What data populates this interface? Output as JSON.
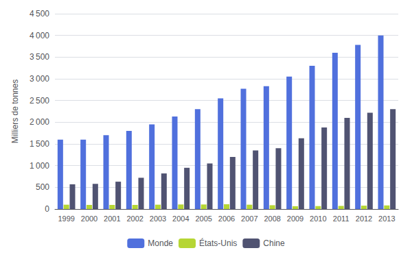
{
  "chart_data": {
    "type": "bar",
    "categories": [
      "1999",
      "2000",
      "2001",
      "2002",
      "2003",
      "2004",
      "2005",
      "2006",
      "2007",
      "2008",
      "2009",
      "2010",
      "2011",
      "2012",
      "2013"
    ],
    "series": [
      {
        "name": "Monde",
        "values": [
          1600,
          1600,
          1700,
          1800,
          1950,
          2130,
          2300,
          2550,
          2770,
          2830,
          3050,
          3300,
          3600,
          3780,
          4000
        ]
      },
      {
        "name": "États-Unis",
        "values": [
          100,
          95,
          95,
          95,
          100,
          105,
          105,
          110,
          100,
          88,
          65,
          68,
          72,
          78,
          83
        ]
      },
      {
        "name": "Chine",
        "values": [
          570,
          580,
          630,
          720,
          820,
          950,
          1050,
          1200,
          1350,
          1400,
          1630,
          1880,
          2100,
          2220,
          2300
        ]
      }
    ],
    "ylabel": "Milliers de tonnes",
    "ylim": [
      0,
      4500
    ],
    "yticks": [
      0,
      500,
      {
        "value": 1000,
        "label": "1 000"
      },
      {
        "value": 1500,
        "label": "1 500"
      },
      {
        "value": 2000,
        "label": "2 000"
      },
      {
        "value": 2500,
        "label": "2 500"
      },
      {
        "value": 3000,
        "label": "3 000"
      },
      {
        "value": 3500,
        "label": "3 500"
      },
      {
        "value": 4000,
        "label": "4 000"
      },
      {
        "value": 4500,
        "label": "4 500"
      }
    ],
    "grid": true,
    "legend": "bottom"
  }
}
